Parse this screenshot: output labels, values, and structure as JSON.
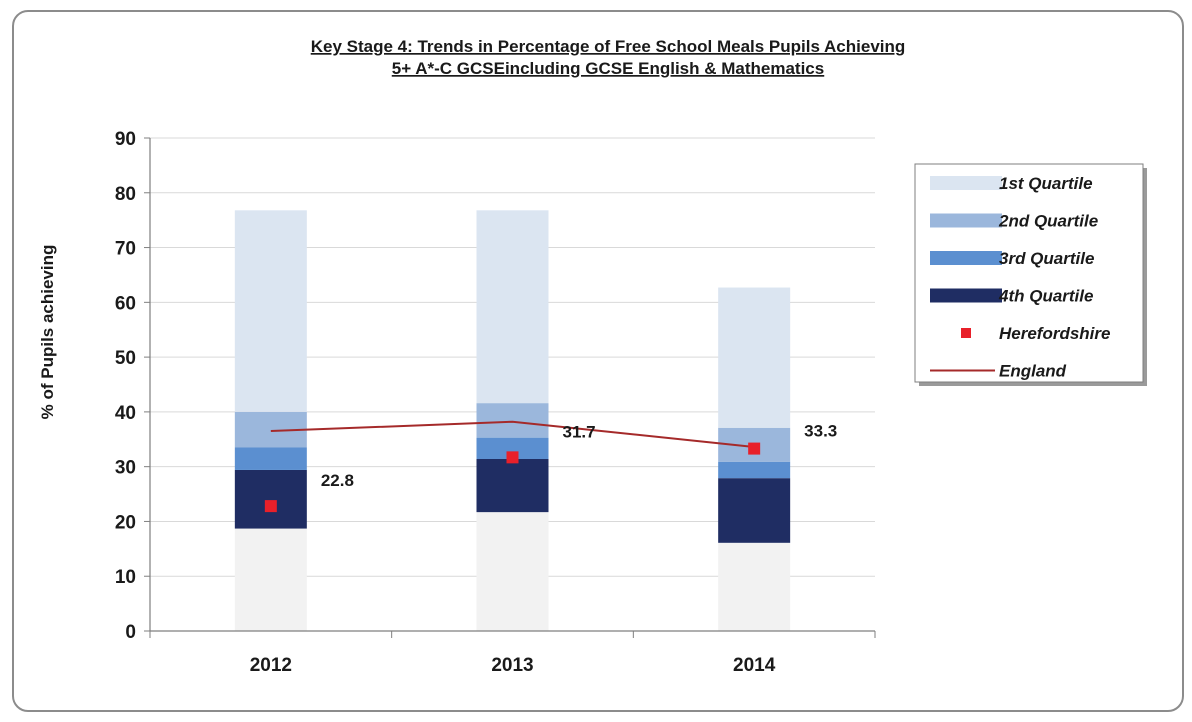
{
  "chart_data": {
    "type": "bar",
    "stacked": true,
    "title_lines": [
      "Key Stage 4: Trends in Percentage of Free School Meals  Pupils  Achieving",
      "5+ A*-C GCSEincluding GCSE English & Mathematics"
    ],
    "xlabel": "",
    "ylabel": "% of Pupils achieving",
    "ylim": [
      0,
      90
    ],
    "yticks": [
      0,
      10,
      20,
      30,
      40,
      50,
      60,
      70,
      80,
      90
    ],
    "grid": true,
    "legend_position": "right",
    "categories": [
      "2012",
      "2013",
      "2014"
    ],
    "base": {
      "values": [
        18.7,
        21.7,
        16.1
      ],
      "color": "#f2f2f2"
    },
    "series": [
      {
        "name": "4th Quartile",
        "range_top": [
          29.4,
          31.4,
          27.9
        ],
        "color": "#1f2d63"
      },
      {
        "name": "3rd Quartile",
        "range_top": [
          33.5,
          35.3,
          30.9
        ],
        "color": "#5b8fd0"
      },
      {
        "name": "2nd Quartile",
        "range_top": [
          40.0,
          41.6,
          37.1
        ],
        "color": "#9bb7dc"
      },
      {
        "name": "1st Quartile",
        "range_top": [
          76.8,
          76.8,
          62.7
        ],
        "color": "#dbe5f1"
      }
    ],
    "markers": {
      "name": "Herefordshire",
      "values": [
        22.8,
        31.7,
        33.3
      ],
      "labels": [
        "22.8",
        "31.7",
        "33.3"
      ],
      "color": "#e8202a"
    },
    "line": {
      "name": "England",
      "values": [
        36.5,
        38.2,
        33.6
      ],
      "color": "#a52a2a"
    },
    "legend_order": [
      "1st Quartile",
      "2nd Quartile",
      "3rd Quartile",
      "4th Quartile",
      "Herefordshire",
      "England"
    ]
  }
}
